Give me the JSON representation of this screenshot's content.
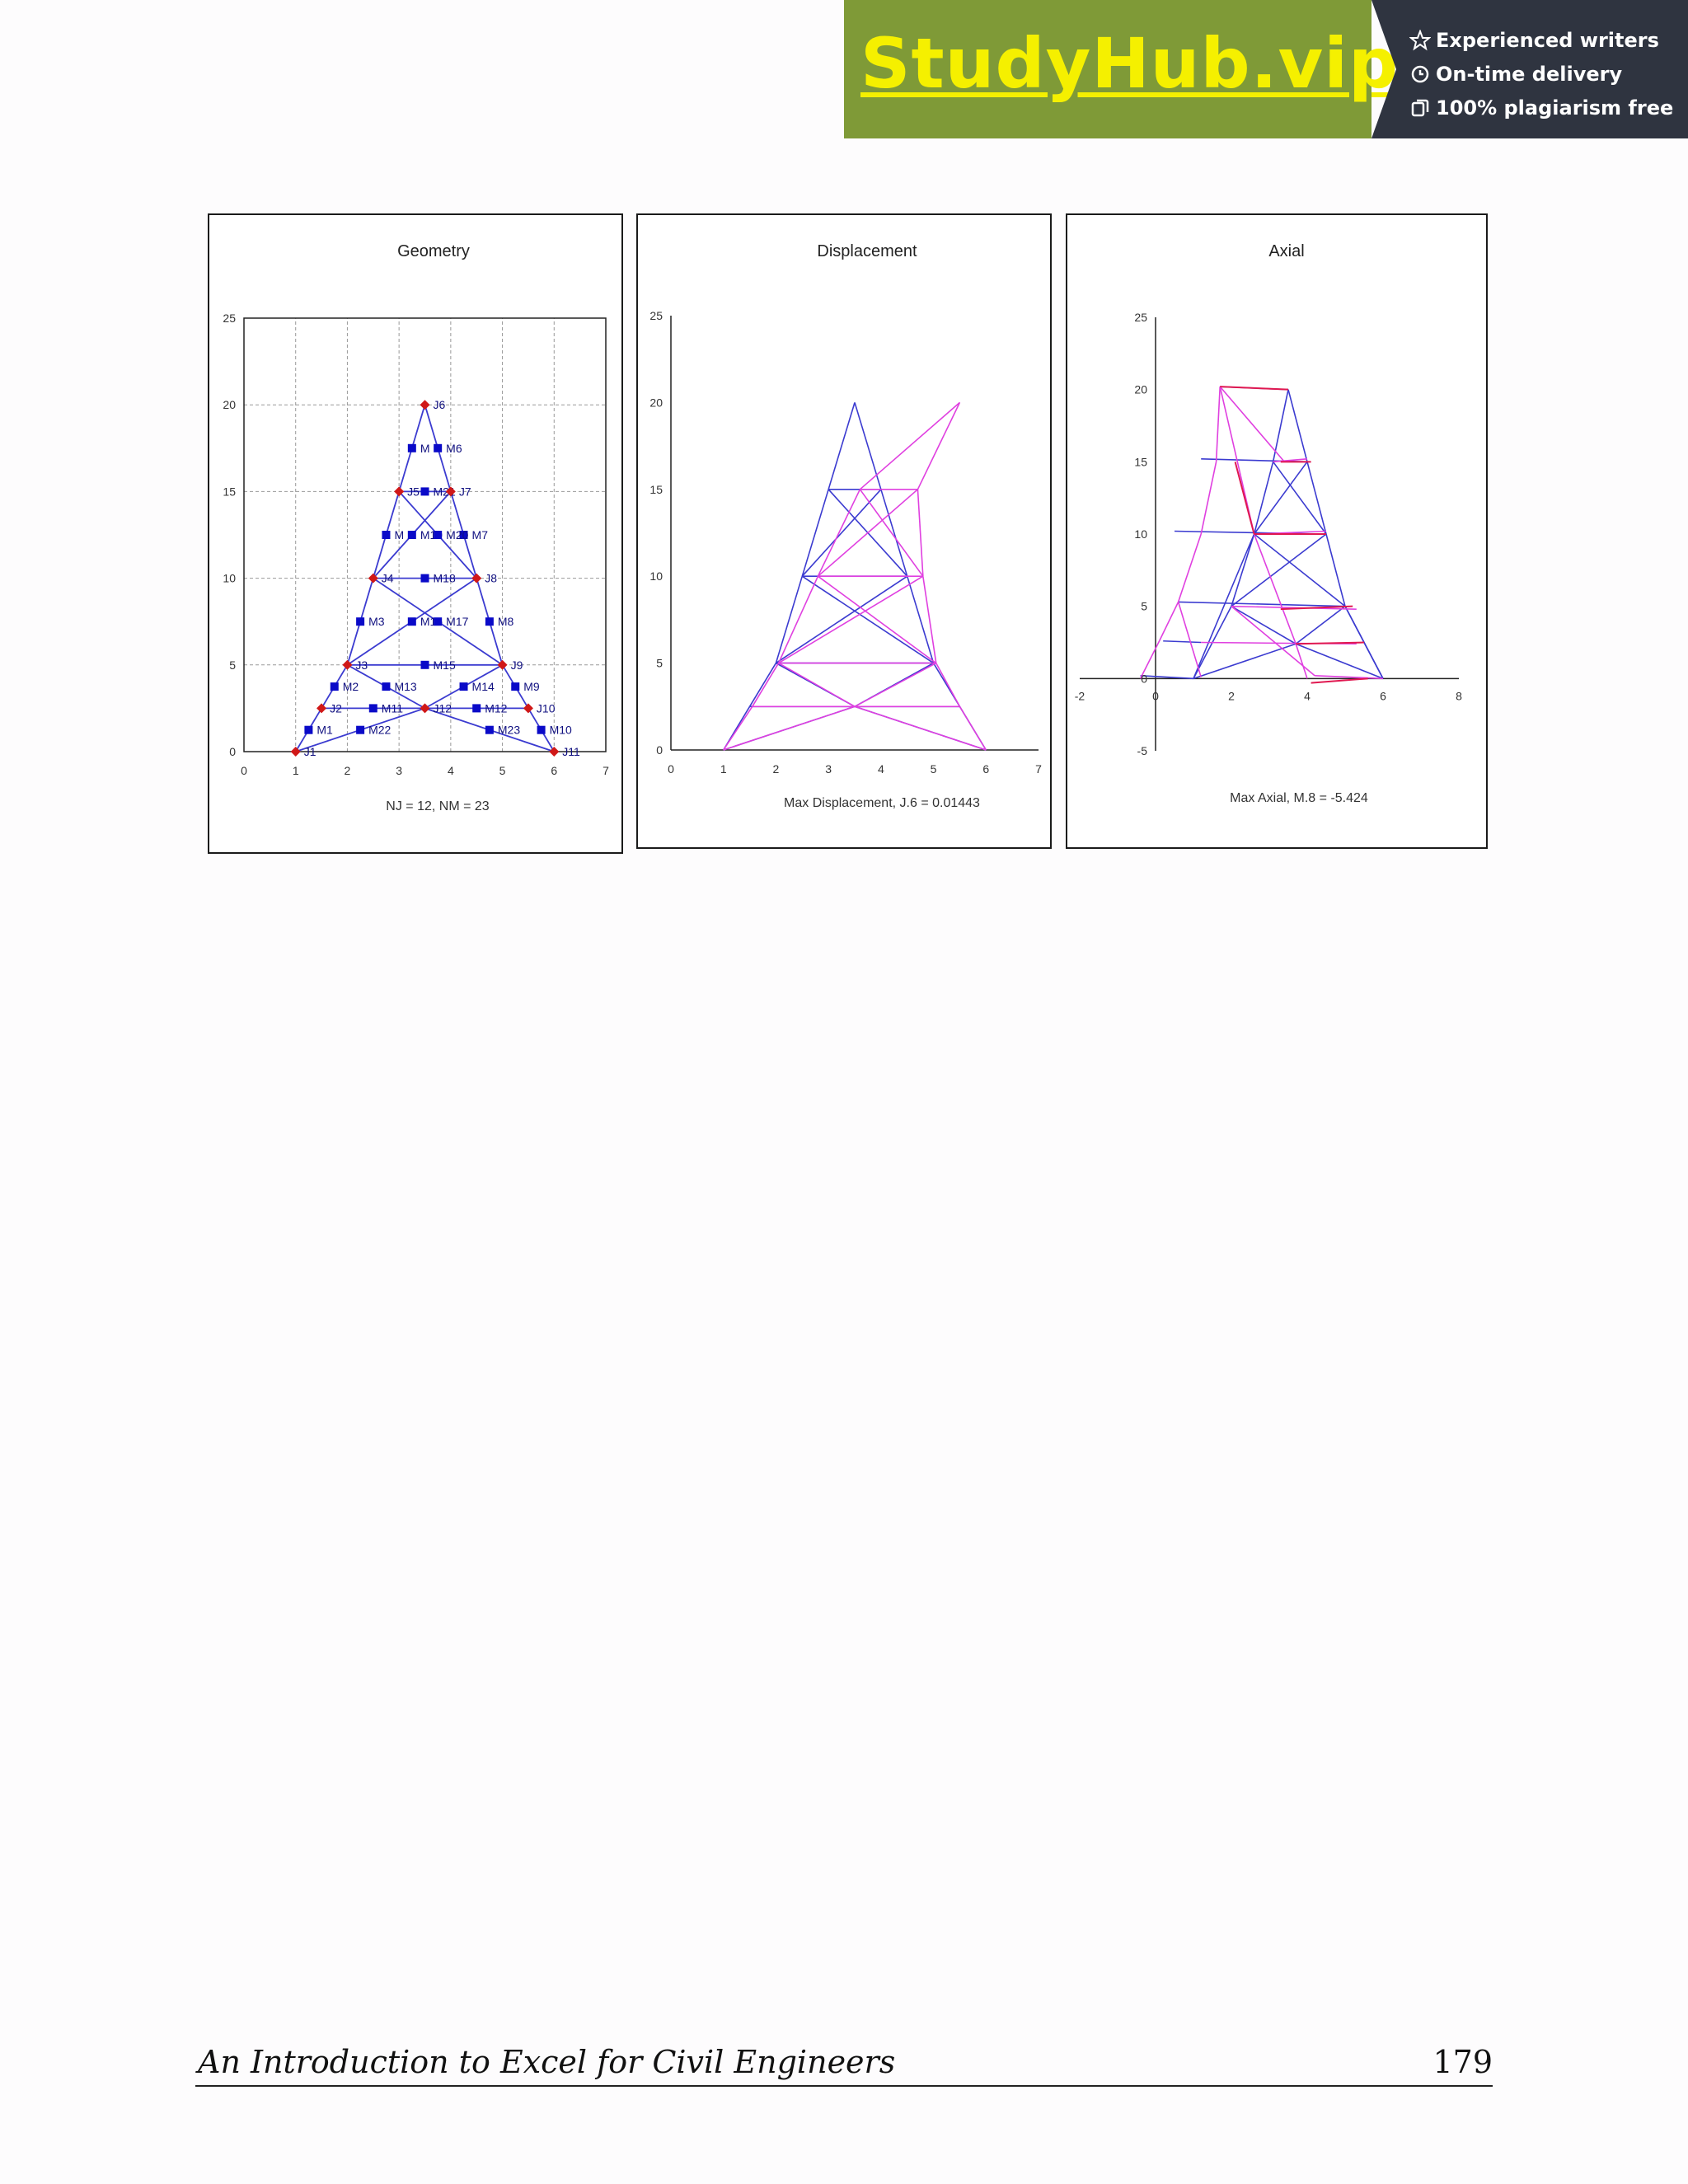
{
  "banner": {
    "brand": "StudyHub.vip",
    "features": [
      {
        "icon": "star-icon",
        "text": "Experienced writers"
      },
      {
        "icon": "clock-icon",
        "text": "On-time delivery"
      },
      {
        "icon": "copy-icon",
        "text": "100% plagiarism free"
      }
    ],
    "colors": {
      "left": "#7f9a37",
      "right": "#2f3440",
      "brand": "#f5f000"
    }
  },
  "chart_data": [
    {
      "type": "scatter",
      "title": "Geometry",
      "caption": "NJ = 12, NM = 23",
      "xlim": [
        0,
        7
      ],
      "ylim": [
        0,
        25
      ],
      "xticks": [
        "0",
        "1",
        "2",
        "3",
        "4",
        "5",
        "6",
        "7"
      ],
      "yticks": [
        "0",
        "5",
        "10",
        "15",
        "20",
        "25"
      ],
      "grid": true,
      "joints": [
        {
          "label": "J1",
          "x": 1,
          "y": 0
        },
        {
          "label": "J2",
          "x": 1.5,
          "y": 2.5
        },
        {
          "label": "J3",
          "x": 2,
          "y": 5
        },
        {
          "label": "J4",
          "x": 2.5,
          "y": 10
        },
        {
          "label": "J5",
          "x": 3,
          "y": 15
        },
        {
          "label": "J6",
          "x": 3.5,
          "y": 20
        },
        {
          "label": "J7",
          "x": 4,
          "y": 15
        },
        {
          "label": "J8",
          "x": 4.5,
          "y": 10
        },
        {
          "label": "J9",
          "x": 5,
          "y": 5
        },
        {
          "label": "J10",
          "x": 5.5,
          "y": 2.5
        },
        {
          "label": "J11",
          "x": 6,
          "y": 0
        },
        {
          "label": "J12",
          "x": 3.5,
          "y": 2.5
        }
      ],
      "members": [
        {
          "label": "M1",
          "x": 1.25,
          "y": 1.25
        },
        {
          "label": "M2",
          "x": 1.75,
          "y": 3.75
        },
        {
          "label": "M3",
          "x": 2.25,
          "y": 7.5
        },
        {
          "label": "M",
          "x": 2.75,
          "y": 12.5
        },
        {
          "label": "M",
          "x": 3.25,
          "y": 17.5
        },
        {
          "label": "M6",
          "x": 3.75,
          "y": 17.5
        },
        {
          "label": "M7",
          "x": 4.25,
          "y": 12.5
        },
        {
          "label": "M8",
          "x": 4.75,
          "y": 7.5
        },
        {
          "label": "M9",
          "x": 5.25,
          "y": 3.75
        },
        {
          "label": "M10",
          "x": 5.75,
          "y": 1.25
        },
        {
          "label": "M11",
          "x": 2.5,
          "y": 2.5
        },
        {
          "label": "M12",
          "x": 4.5,
          "y": 2.5
        },
        {
          "label": "M13",
          "x": 2.75,
          "y": 3.75
        },
        {
          "label": "M14",
          "x": 4.25,
          "y": 3.75
        },
        {
          "label": "M15",
          "x": 3.5,
          "y": 5
        },
        {
          "label": "M16",
          "x": 3.25,
          "y": 7.5
        },
        {
          "label": "M17",
          "x": 3.75,
          "y": 7.5
        },
        {
          "label": "M18",
          "x": 3.5,
          "y": 10
        },
        {
          "label": "M19",
          "x": 3.25,
          "y": 12.5
        },
        {
          "label": "M20",
          "x": 3.75,
          "y": 12.5
        },
        {
          "label": "M21",
          "x": 3.5,
          "y": 15
        },
        {
          "label": "M22",
          "x": 2.25,
          "y": 1.25
        },
        {
          "label": "M23",
          "x": 4.75,
          "y": 1.25
        }
      ],
      "colors": {
        "line": "#3b3bd0",
        "joint": "#d01818",
        "member": "#0a0ac8"
      }
    },
    {
      "type": "line",
      "title": "Displacement",
      "caption": "Max Displacement, J.6 = 0.01443",
      "xlim": [
        0,
        7
      ],
      "ylim": [
        0,
        25
      ],
      "xticks": [
        "0",
        "1",
        "2",
        "3",
        "4",
        "5",
        "6",
        "7"
      ],
      "yticks": [
        "0",
        "5",
        "10",
        "15",
        "20",
        "25"
      ],
      "grid": false,
      "series": [
        {
          "x": [
            1,
            2,
            3,
            3.5,
            4,
            5,
            6
          ],
          "y": [
            0,
            5,
            15,
            20,
            15,
            5,
            0
          ]
        },
        {
          "x": [
            1,
            1.6,
            2.1,
            2.8,
            3.6,
            4.5,
            5.5,
            4.8,
            4.6,
            5,
            6
          ],
          "y": [
            0,
            2.5,
            5,
            10,
            15,
            20,
            15,
            10,
            10,
            5,
            0
          ]
        }
      ],
      "colors": {
        "original": "#3b3bd0",
        "deformed": "#e040e0"
      }
    },
    {
      "type": "line",
      "title": "Axial",
      "caption": "Max Axial, M.8 = -5.424",
      "xlim": [
        -2,
        8
      ],
      "ylim": [
        -5,
        25
      ],
      "xticks": [
        "-2",
        "0",
        "2",
        "4",
        "6",
        "8"
      ],
      "yticks": [
        "-5",
        "0",
        "5",
        "10",
        "15",
        "20",
        "25"
      ],
      "grid": false,
      "colors": {
        "structure": "#3b3bd0",
        "tension": "#e040e0",
        "compression": "#e01850"
      }
    }
  ],
  "footer": {
    "title": "An Introduction to Excel for Civil Engineers",
    "page_number": "179"
  }
}
